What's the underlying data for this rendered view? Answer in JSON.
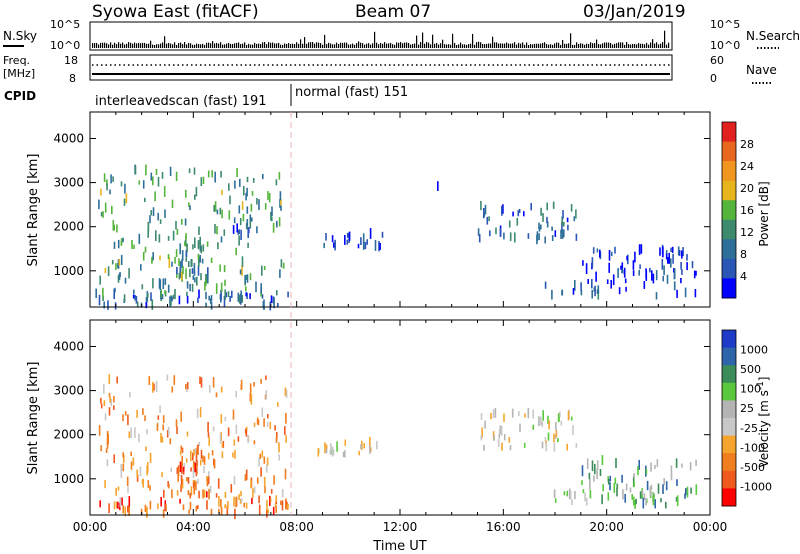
{
  "header": {
    "title": "Syowa East (fitACF)",
    "beam": "Beam 07",
    "date": "03/Jan/2019"
  },
  "sky_panel": {
    "left_label": "N.Sky",
    "right_label": "N.Search",
    "left_ticks": [
      "10^5",
      "10^0"
    ],
    "right_ticks": [
      "10^5",
      "10^0"
    ]
  },
  "freq_panel": {
    "left_label_1": "Freq.",
    "left_label_2": "[MHz]",
    "right_label": "Nave",
    "left_ticks": [
      "18",
      "8"
    ],
    "right_ticks": [
      "60",
      "0"
    ]
  },
  "cpid_panel": {
    "label": "CPID",
    "modes": [
      {
        "label": "interleavedscan (fast) 191",
        "start_hour": 0,
        "end_hour": 8
      },
      {
        "label": "normal (fast) 151",
        "start_hour": 8,
        "end_hour": 24
      }
    ]
  },
  "colors": {
    "power_scale": [
      "#0000ff",
      "#2a56b5",
      "#2e6f9a",
      "#3d8a6e",
      "#55b43c",
      "#e8b41e",
      "#f0961e",
      "#e8661e",
      "#e22020"
    ],
    "velocity_scale": [
      "#ff0000",
      "#f05a1e",
      "#f07d1e",
      "#f5a52d",
      "#c8c8c8",
      "#b4b4b4",
      "#5ac83c",
      "#3c8c5a",
      "#2d64aa",
      "#1e3cc8"
    ]
  },
  "chart_data": [
    {
      "type": "heatmap",
      "name": "power",
      "ylabel": "Slant Range [km]",
      "colorbar_label": "Power [dB]",
      "colorbar_ticks": [
        "28",
        "24",
        "20",
        "16",
        "12",
        "8",
        "4"
      ],
      "xlim": [
        0,
        24
      ],
      "ylim": [
        180,
        4600
      ],
      "yticks": [
        "1000",
        "2000",
        "3000",
        "4000"
      ],
      "features": [
        {
          "t0": 0.0,
          "t1": 7.9,
          "r0": 200,
          "r1": 500,
          "level": 0.25,
          "density": 1.4
        },
        {
          "t0": 0.3,
          "t1": 7.6,
          "r0": 400,
          "r1": 3300,
          "level": 0.4,
          "density": 0.55
        },
        {
          "t0": 3.3,
          "t1": 4.6,
          "r0": 600,
          "r1": 1700,
          "level": 0.35,
          "density": 1.6
        },
        {
          "t0": 5.0,
          "t1": 6.4,
          "r0": 1700,
          "r1": 2200,
          "level": 0.2,
          "density": 0.9
        },
        {
          "t0": 8.8,
          "t1": 11.3,
          "r0": 1550,
          "r1": 1850,
          "level": 0.15,
          "density": 1.6
        },
        {
          "t0": 13.2,
          "t1": 13.6,
          "r0": 2850,
          "r1": 2950,
          "level": 0.15,
          "density": 1.0
        },
        {
          "t0": 15.0,
          "t1": 18.8,
          "r0": 1700,
          "r1": 2500,
          "level": 0.25,
          "density": 1.0
        },
        {
          "t0": 17.5,
          "t1": 19.8,
          "r0": 450,
          "r1": 700,
          "level": 0.25,
          "density": 1.2
        },
        {
          "t0": 19.0,
          "t1": 23.5,
          "r0": 400,
          "r1": 1500,
          "level": 0.12,
          "density": 0.9
        }
      ]
    },
    {
      "type": "heatmap",
      "name": "velocity",
      "ylabel": "Slant Range [km]",
      "xlabel": "Time UT",
      "colorbar_label": "Velocity [m s^-1]",
      "colorbar_ticks": [
        "1000",
        "500",
        "100",
        "25",
        "-25",
        "-100",
        "-500",
        "-1000"
      ],
      "xlim": [
        0,
        24
      ],
      "ylim": [
        180,
        4600
      ],
      "yticks": [
        "1000",
        "2000",
        "3000",
        "4000"
      ],
      "xticks": [
        "00:00",
        "04:00",
        "08:00",
        "12:00",
        "16:00",
        "20:00",
        "00:00"
      ],
      "features": [
        {
          "t0": 0.0,
          "t1": 7.9,
          "r0": 200,
          "r1": 500,
          "level": 0.2,
          "density": 1.4
        },
        {
          "t0": 0.3,
          "t1": 7.6,
          "r0": 400,
          "r1": 3300,
          "level": 0.3,
          "density": 0.55
        },
        {
          "t0": 3.3,
          "t1": 4.6,
          "r0": 600,
          "r1": 1700,
          "level": 0.22,
          "density": 1.6
        },
        {
          "t0": 8.8,
          "t1": 11.3,
          "r0": 1550,
          "r1": 1850,
          "level": 0.45,
          "density": 1.6
        },
        {
          "t0": 15.0,
          "t1": 18.8,
          "r0": 1700,
          "r1": 2500,
          "level": 0.5,
          "density": 1.0
        },
        {
          "t0": 17.5,
          "t1": 19.8,
          "r0": 450,
          "r1": 700,
          "level": 0.6,
          "density": 1.2
        },
        {
          "t0": 19.0,
          "t1": 23.5,
          "r0": 400,
          "r1": 1500,
          "level": 0.7,
          "density": 0.9
        }
      ]
    }
  ]
}
